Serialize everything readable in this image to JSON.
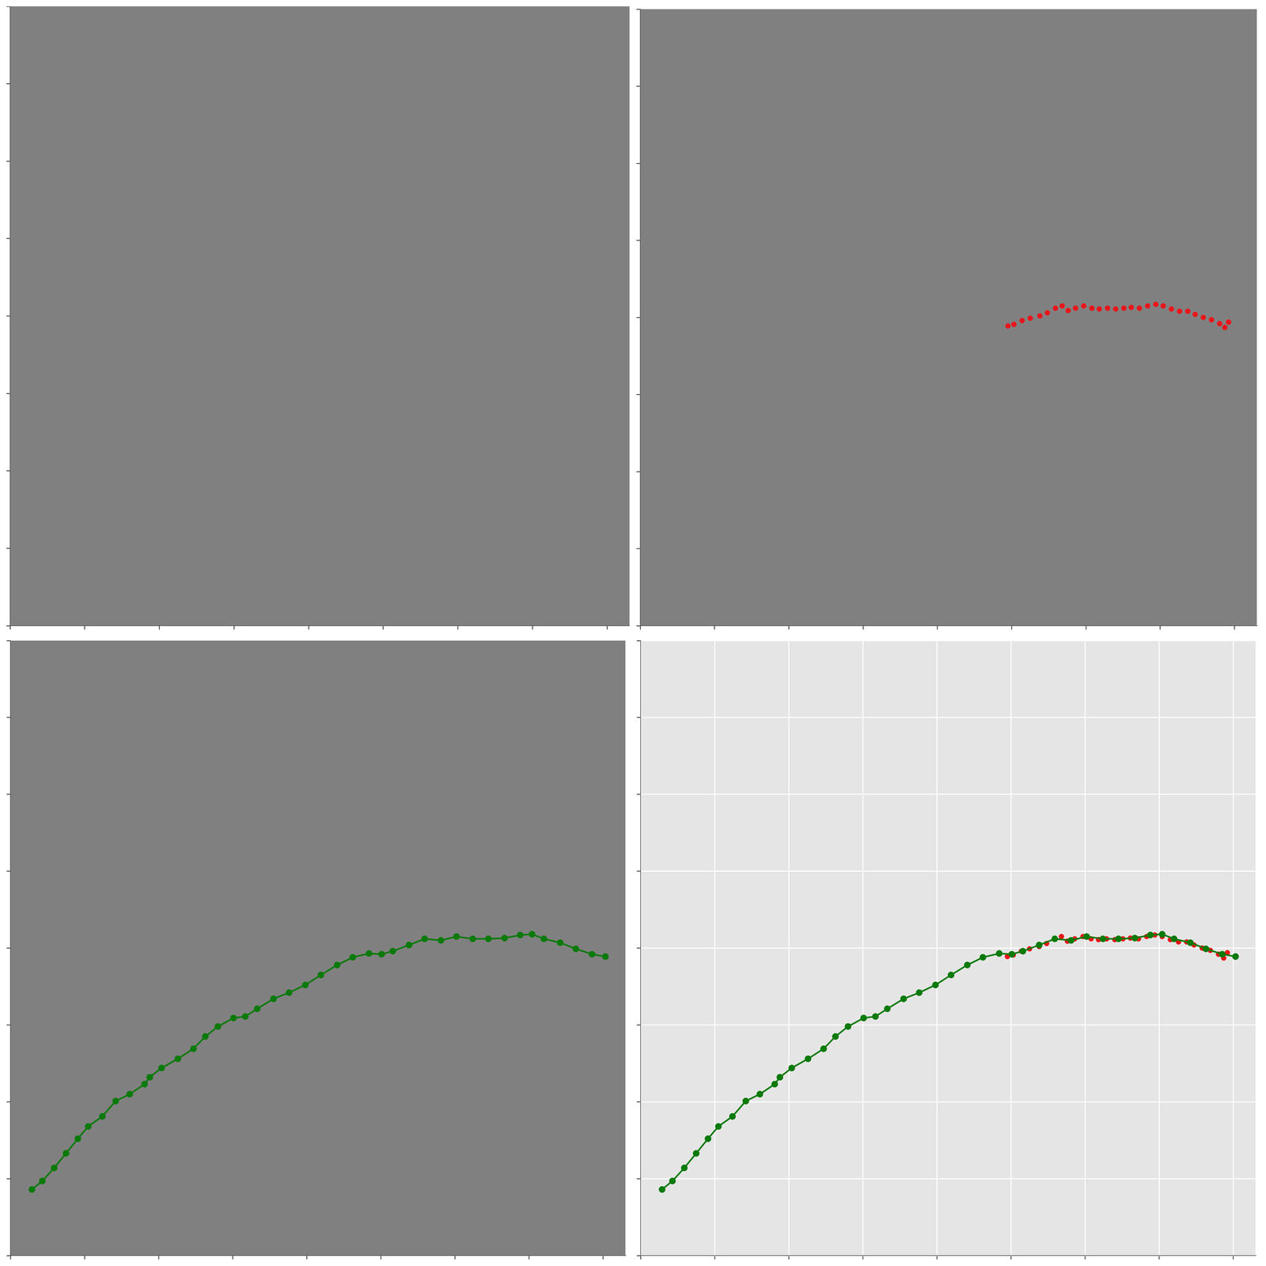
{
  "chart_data": [
    {
      "type": "scatter",
      "xlim": [
        0,
        830
      ],
      "ylim": [
        0,
        800
      ],
      "xticks": [
        0,
        100,
        200,
        300,
        400,
        500,
        600,
        700,
        800
      ],
      "yticks": [
        0,
        100,
        200,
        300,
        400,
        500,
        600,
        700,
        800
      ],
      "grid": false,
      "tick_labels": false,
      "series": []
    },
    {
      "type": "scatter",
      "xlim": [
        0,
        830
      ],
      "ylim": [
        0,
        800
      ],
      "xticks": [
        0,
        100,
        200,
        300,
        400,
        500,
        600,
        700,
        800
      ],
      "yticks": [
        0,
        100,
        200,
        300,
        400,
        500,
        600,
        700,
        800
      ],
      "grid": false,
      "tick_labels": false,
      "series": [
        {
          "color": "#e8161b",
          "marker": "circle",
          "x": [
            495,
            503,
            514,
            525,
            538,
            548,
            559,
            568,
            576,
            586,
            597,
            608,
            618,
            629,
            640,
            651,
            661,
            672,
            683,
            694,
            704,
            715,
            726,
            737,
            747,
            758,
            769,
            780,
            787,
            792
          ],
          "values": [
            411,
            409,
            404,
            401,
            398,
            394,
            388,
            385,
            391,
            388,
            385,
            388,
            389,
            388,
            389,
            388,
            387,
            388,
            385,
            383,
            385,
            389,
            392,
            392,
            396,
            400,
            403,
            408,
            413,
            406
          ]
        }
      ]
    },
    {
      "type": "scatter",
      "xlim": [
        0,
        830
      ],
      "ylim": [
        0,
        800
      ],
      "xticks": [
        0,
        100,
        200,
        300,
        400,
        500,
        600,
        700,
        800
      ],
      "yticks": [
        0,
        100,
        200,
        300,
        400,
        500,
        600,
        700,
        800
      ],
      "grid": false,
      "tick_labels": false,
      "series": [
        {
          "color": "#0a7a0a",
          "marker": "circle",
          "line_style": "solid",
          "x": [
            29,
            43,
            59,
            75,
            91,
            105,
            124,
            142,
            161,
            181,
            188,
            204,
            226,
            247,
            263,
            280,
            301,
            317,
            333,
            355,
            376,
            398,
            419,
            441,
            462,
            484,
            501,
            516,
            538,
            559,
            581,
            602,
            624,
            645,
            667,
            688,
            704,
            720,
            742,
            763,
            785,
            803
          ],
          "values": [
            714,
            703,
            686,
            667,
            648,
            632,
            619,
            599,
            590,
            577,
            568,
            556,
            544,
            531,
            515,
            502,
            491,
            489,
            479,
            466,
            458,
            448,
            435,
            422,
            412,
            407,
            408,
            404,
            396,
            388,
            390,
            385,
            388,
            388,
            387,
            383,
            382,
            388,
            393,
            401,
            408,
            411
          ]
        }
      ]
    },
    {
      "type": "scatter",
      "xlim": [
        0,
        830
      ],
      "ylim": [
        0,
        800
      ],
      "xticks": [
        0,
        100,
        200,
        300,
        400,
        500,
        600,
        700,
        800
      ],
      "yticks": [
        0,
        100,
        200,
        300,
        400,
        500,
        600,
        700,
        800
      ],
      "grid": true,
      "tick_labels": false,
      "series": [
        {
          "color": "#0a7a0a",
          "marker": "circle",
          "line_style": "solid",
          "x": [
            29,
            43,
            59,
            75,
            91,
            105,
            124,
            142,
            161,
            181,
            188,
            204,
            226,
            247,
            263,
            280,
            301,
            317,
            333,
            355,
            376,
            398,
            419,
            441,
            462,
            484,
            501,
            516,
            538,
            559,
            581,
            602,
            624,
            645,
            667,
            688,
            704,
            720,
            742,
            763,
            785,
            803
          ],
          "values": [
            714,
            703,
            686,
            667,
            648,
            632,
            619,
            599,
            590,
            577,
            568,
            556,
            544,
            531,
            515,
            502,
            491,
            489,
            479,
            466,
            458,
            448,
            435,
            422,
            412,
            407,
            408,
            404,
            396,
            388,
            390,
            385,
            388,
            388,
            387,
            383,
            382,
            388,
            393,
            401,
            408,
            411
          ]
        },
        {
          "color": "#e8161b",
          "marker": "circle",
          "x": [
            495,
            503,
            514,
            525,
            538,
            548,
            559,
            568,
            576,
            586,
            597,
            608,
            618,
            629,
            640,
            651,
            661,
            672,
            683,
            694,
            704,
            715,
            726,
            737,
            747,
            758,
            769,
            780,
            787,
            792
          ],
          "values": [
            411,
            409,
            404,
            401,
            398,
            394,
            388,
            385,
            391,
            388,
            385,
            388,
            389,
            388,
            389,
            388,
            387,
            388,
            385,
            383,
            385,
            389,
            392,
            392,
            396,
            400,
            403,
            408,
            413,
            406
          ]
        }
      ]
    }
  ]
}
